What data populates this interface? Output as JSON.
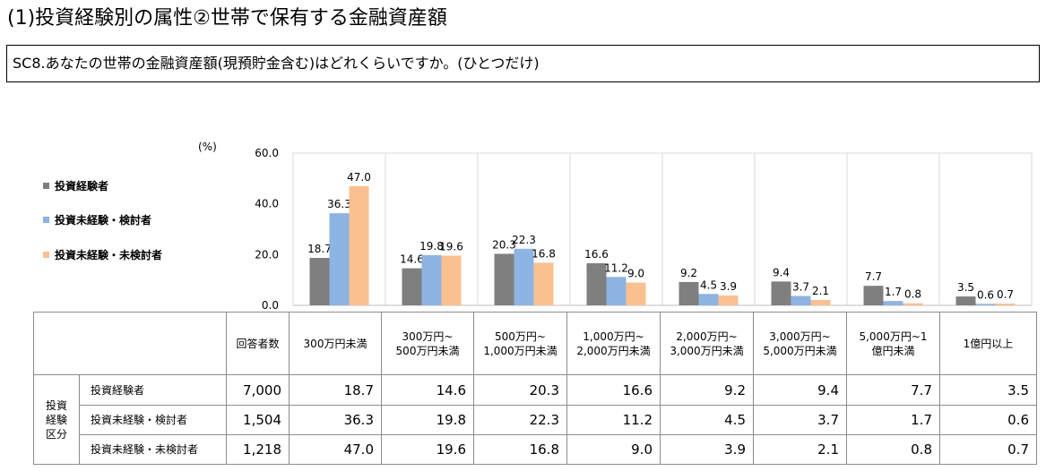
{
  "header": {
    "title": "(1)投資経験別の属性②世帯で保有する金融資産額",
    "question": "SC8.あなたの世帯の金融資産額(現預貯金含む)はどれくらいですか。(ひとつだけ)"
  },
  "chart_data": {
    "type": "bar",
    "unit": "(%)",
    "ylim": [
      0,
      60
    ],
    "yticks": [
      "0.0",
      "20.0",
      "40.0",
      "60.0"
    ],
    "categories": [
      "300万円未満",
      "300万円~500万円未満",
      "500万円~1,000万円未満",
      "1,000万円~2,000万円未満",
      "2,000万円~3,000万円未満",
      "3,000万円~5,000万円未満",
      "5,000万円~1億円未満",
      "1億円以上"
    ],
    "series": [
      {
        "name": "投資経験者",
        "color": "#7f7f7f",
        "values": [
          18.7,
          14.6,
          20.3,
          16.6,
          9.2,
          9.4,
          7.7,
          3.5
        ]
      },
      {
        "name": "投資未経験・検討者",
        "color": "#8db4e2",
        "values": [
          36.3,
          19.8,
          22.3,
          11.2,
          4.5,
          3.7,
          1.7,
          0.6
        ]
      },
      {
        "name": "投資未経験・未検討者",
        "color": "#fac090",
        "values": [
          47.0,
          19.6,
          16.8,
          9.0,
          3.9,
          2.1,
          0.8,
          0.7
        ]
      }
    ],
    "legend_position": "left",
    "grid": "vertical-category-separators"
  },
  "table": {
    "respondents_header": "回答者数",
    "column_headers": [
      "300万円未満",
      "300万円~\n500万円未満",
      "500万円~\n1,000万円未満",
      "1,000万円~\n2,000万円未満",
      "2,000万円~\n3,000万円未満",
      "3,000万円~\n5,000万円未満",
      "5,000万円~1\n億円未満",
      "1億円以上"
    ],
    "group_label": "投資\n経験\n区分",
    "rows": [
      {
        "label": "投資経験者",
        "respondents": "7,000",
        "values": [
          "18.7",
          "14.6",
          "20.3",
          "16.6",
          "9.2",
          "9.4",
          "7.7",
          "3.5"
        ]
      },
      {
        "label": "投資未経験・検討者",
        "respondents": "1,504",
        "values": [
          "36.3",
          "19.8",
          "22.3",
          "11.2",
          "4.5",
          "3.7",
          "1.7",
          "0.6"
        ]
      },
      {
        "label": "投資未経験・未検討者",
        "respondents": "1,218",
        "values": [
          "47.0",
          "19.6",
          "16.8",
          "9.0",
          "3.9",
          "2.1",
          "0.8",
          "0.7"
        ]
      }
    ]
  }
}
